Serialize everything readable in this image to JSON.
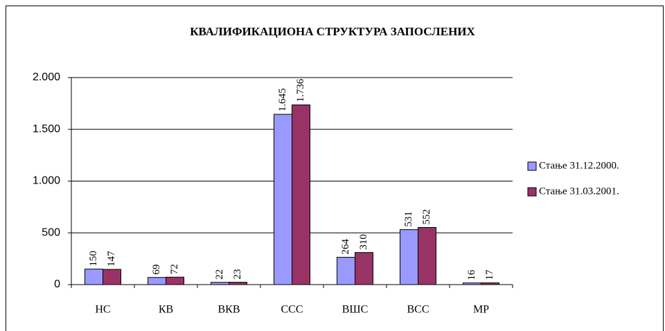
{
  "chart_data": {
    "type": "bar",
    "title": "КВАЛИФИКАЦИОНА СТРУКТУРА ЗАПОСЛЕНИХ",
    "categories": [
      "НС",
      "КВ",
      "ВКВ",
      "ССС",
      "ВШС",
      "ВСС",
      "МР"
    ],
    "series": [
      {
        "name": "Стање 31.12.2000.",
        "color": "#9999ff",
        "values": [
          150,
          69,
          22,
          1645,
          264,
          531,
          16
        ],
        "value_labels": [
          "150",
          "69",
          "22",
          "1.645",
          "264",
          "531",
          "16"
        ]
      },
      {
        "name": "Стање 31.03.2001.",
        "color": "#993366",
        "values": [
          147,
          72,
          23,
          1736,
          310,
          552,
          17
        ],
        "value_labels": [
          "147",
          "72",
          "23",
          "1.736",
          "310",
          "552",
          "17"
        ]
      }
    ],
    "ylim": [
      0,
      2000
    ],
    "yticks": [
      0,
      500,
      {
        "value": 1000,
        "label": "1.000"
      },
      {
        "value": 1500,
        "label": "1.500"
      },
      {
        "value": 2000,
        "label": "2.000"
      }
    ],
    "grid": true,
    "legend": "right"
  }
}
